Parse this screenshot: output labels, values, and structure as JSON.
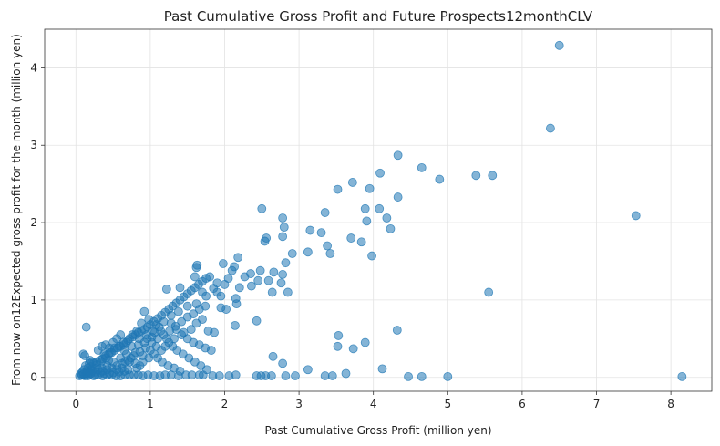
{
  "chart_data": {
    "type": "scatter",
    "title": "Past Cumulative Gross Profit and Future Prospects12monthCLV",
    "xlabel": "Past Cumulative Gross Profit (million yen)",
    "ylabel": "From now on12Expected gross profit for the month (million yen)",
    "xlim": [
      -0.42,
      8.55
    ],
    "ylim": [
      -0.18,
      4.5
    ],
    "xticks": [
      0,
      1,
      2,
      3,
      4,
      5,
      6,
      7,
      8
    ],
    "yticks": [
      0,
      1,
      2,
      3,
      4
    ],
    "grid": true,
    "point_color": "#1f77b4",
    "point_opacity": 0.55,
    "points": [
      [
        6.5,
        4.29
      ],
      [
        6.38,
        3.22
      ],
      [
        4.33,
        2.87
      ],
      [
        4.65,
        2.71
      ],
      [
        4.09,
        2.64
      ],
      [
        3.72,
        2.52
      ],
      [
        3.95,
        2.44
      ],
      [
        3.52,
        2.43
      ],
      [
        4.33,
        2.33
      ],
      [
        4.89,
        2.56
      ],
      [
        5.38,
        2.61
      ],
      [
        5.6,
        2.61
      ],
      [
        7.53,
        2.09
      ],
      [
        3.89,
        2.18
      ],
      [
        4.08,
        2.18
      ],
      [
        4.18,
        2.06
      ],
      [
        3.91,
        2.02
      ],
      [
        4.23,
        1.92
      ],
      [
        3.35,
        2.13
      ],
      [
        2.78,
        2.06
      ],
      [
        2.8,
        1.94
      ],
      [
        3.15,
        1.9
      ],
      [
        3.3,
        1.87
      ],
      [
        3.7,
        1.8
      ],
      [
        3.84,
        1.75
      ],
      [
        2.5,
        2.18
      ],
      [
        2.56,
        1.8
      ],
      [
        2.54,
        1.76
      ],
      [
        2.78,
        1.82
      ],
      [
        3.38,
        1.7
      ],
      [
        3.42,
        1.6
      ],
      [
        3.98,
        1.57
      ],
      [
        3.12,
        1.62
      ],
      [
        2.91,
        1.6
      ],
      [
        2.82,
        1.48
      ],
      [
        2.66,
        1.36
      ],
      [
        2.78,
        1.33
      ],
      [
        2.48,
        1.38
      ],
      [
        2.35,
        1.34
      ],
      [
        2.18,
        1.55
      ],
      [
        2.13,
        1.43
      ],
      [
        1.98,
        1.47
      ],
      [
        1.63,
        1.45
      ],
      [
        1.62,
        1.42
      ],
      [
        2.27,
        1.3
      ],
      [
        2.36,
        1.18
      ],
      [
        2.45,
        1.25
      ],
      [
        2.59,
        1.25
      ],
      [
        2.76,
        1.22
      ],
      [
        2.85,
        1.1
      ],
      [
        2.64,
        1.1
      ],
      [
        2.2,
        1.16
      ],
      [
        2.15,
        1.02
      ],
      [
        2.16,
        0.95
      ],
      [
        2.14,
        0.67
      ],
      [
        2.43,
        0.73
      ],
      [
        5.55,
        1.1
      ],
      [
        4.32,
        0.61
      ],
      [
        3.53,
        0.54
      ],
      [
        3.89,
        0.45
      ],
      [
        3.52,
        0.4
      ],
      [
        3.73,
        0.37
      ],
      [
        2.65,
        0.27
      ],
      [
        2.78,
        0.18
      ],
      [
        3.12,
        0.1
      ],
      [
        3.63,
        0.05
      ],
      [
        4.12,
        0.11
      ],
      [
        3.35,
        0.02
      ],
      [
        3.45,
        0.02
      ],
      [
        4.47,
        0.01
      ],
      [
        4.65,
        0.01
      ],
      [
        5.0,
        0.01
      ],
      [
        8.15,
        0.01
      ],
      [
        2.95,
        0.02
      ],
      [
        2.63,
        0.02
      ],
      [
        2.55,
        0.02
      ],
      [
        2.49,
        0.02
      ],
      [
        2.82,
        0.02
      ],
      [
        2.43,
        0.02
      ],
      [
        2.15,
        0.03
      ],
      [
        2.06,
        0.02
      ],
      [
        1.93,
        0.02
      ],
      [
        1.84,
        0.02
      ],
      [
        1.71,
        0.03
      ],
      [
        1.66,
        0.03
      ],
      [
        1.56,
        0.03
      ],
      [
        1.48,
        0.03
      ],
      [
        1.38,
        0.02
      ],
      [
        1.28,
        0.03
      ],
      [
        1.2,
        0.03
      ],
      [
        1.13,
        0.02
      ],
      [
        1.05,
        0.02
      ],
      [
        0.97,
        0.03
      ],
      [
        0.9,
        0.02
      ],
      [
        0.84,
        0.03
      ],
      [
        0.78,
        0.03
      ],
      [
        0.72,
        0.03
      ],
      [
        0.66,
        0.03
      ],
      [
        0.6,
        0.02
      ],
      [
        0.54,
        0.02
      ],
      [
        0.48,
        0.03
      ],
      [
        0.42,
        0.03
      ],
      [
        0.36,
        0.02
      ],
      [
        0.3,
        0.03
      ],
      [
        0.24,
        0.02
      ],
      [
        0.18,
        0.03
      ],
      [
        0.12,
        0.02
      ],
      [
        0.08,
        0.03
      ],
      [
        0.05,
        0.02
      ],
      [
        0.14,
        0.65
      ],
      [
        0.12,
        0.28
      ],
      [
        0.1,
        0.3
      ],
      [
        0.16,
        0.12
      ],
      [
        0.2,
        0.14
      ],
      [
        0.24,
        0.18
      ],
      [
        0.28,
        0.2
      ],
      [
        0.32,
        0.22
      ],
      [
        0.36,
        0.24
      ],
      [
        0.4,
        0.28
      ],
      [
        0.44,
        0.3
      ],
      [
        0.48,
        0.32
      ],
      [
        0.52,
        0.35
      ],
      [
        0.56,
        0.38
      ],
      [
        0.6,
        0.4
      ],
      [
        0.64,
        0.42
      ],
      [
        0.68,
        0.45
      ],
      [
        0.72,
        0.5
      ],
      [
        0.76,
        0.52
      ],
      [
        0.8,
        0.55
      ],
      [
        0.84,
        0.58
      ],
      [
        0.88,
        0.6
      ],
      [
        0.92,
        0.62
      ],
      [
        0.96,
        0.65
      ],
      [
        1.0,
        0.68
      ],
      [
        1.05,
        0.72
      ],
      [
        1.1,
        0.76
      ],
      [
        1.15,
        0.8
      ],
      [
        1.2,
        0.84
      ],
      [
        1.25,
        0.88
      ],
      [
        1.3,
        0.92
      ],
      [
        1.35,
        0.96
      ],
      [
        1.4,
        1.0
      ],
      [
        1.45,
        1.04
      ],
      [
        1.5,
        1.08
      ],
      [
        1.55,
        1.12
      ],
      [
        1.6,
        1.16
      ],
      [
        1.65,
        1.2
      ],
      [
        1.7,
        1.24
      ],
      [
        1.75,
        1.28
      ],
      [
        1.8,
        1.3
      ],
      [
        1.85,
        1.15
      ],
      [
        1.9,
        1.1
      ],
      [
        1.95,
        1.05
      ],
      [
        2.0,
        1.2
      ],
      [
        2.05,
        1.28
      ],
      [
        2.1,
        1.38
      ],
      [
        1.22,
        1.14
      ],
      [
        1.4,
        1.16
      ],
      [
        1.28,
        0.7
      ],
      [
        1.35,
        0.62
      ],
      [
        1.42,
        0.55
      ],
      [
        1.5,
        0.5
      ],
      [
        1.58,
        0.45
      ],
      [
        1.66,
        0.42
      ],
      [
        1.74,
        0.38
      ],
      [
        1.82,
        0.35
      ],
      [
        1.2,
        0.4
      ],
      [
        1.15,
        0.35
      ],
      [
        1.05,
        0.3
      ],
      [
        0.98,
        0.25
      ],
      [
        0.9,
        0.2
      ],
      [
        0.86,
        0.15
      ],
      [
        0.82,
        0.12
      ],
      [
        0.7,
        0.1
      ],
      [
        0.65,
        0.08
      ],
      [
        0.58,
        0.07
      ],
      [
        0.5,
        0.06
      ],
      [
        0.45,
        0.05
      ],
      [
        0.38,
        0.05
      ],
      [
        0.33,
        0.06
      ],
      [
        0.27,
        0.07
      ],
      [
        0.22,
        0.08
      ],
      [
        0.18,
        0.06
      ],
      [
        0.14,
        0.05
      ],
      [
        0.1,
        0.04
      ],
      [
        0.07,
        0.05
      ],
      [
        0.55,
        0.15
      ],
      [
        0.62,
        0.18
      ],
      [
        0.7,
        0.22
      ],
      [
        0.78,
        0.28
      ],
      [
        0.86,
        0.33
      ],
      [
        0.94,
        0.38
      ],
      [
        1.02,
        0.45
      ],
      [
        1.1,
        0.5
      ],
      [
        1.18,
        0.55
      ],
      [
        1.26,
        0.6
      ],
      [
        1.34,
        0.66
      ],
      [
        1.42,
        0.72
      ],
      [
        1.5,
        0.78
      ],
      [
        1.58,
        0.82
      ],
      [
        1.66,
        0.88
      ],
      [
        1.74,
        0.92
      ],
      [
        0.65,
        0.35
      ],
      [
        0.75,
        0.4
      ],
      [
        0.85,
        0.5
      ],
      [
        0.95,
        0.55
      ],
      [
        1.03,
        0.6
      ],
      [
        1.12,
        0.65
      ],
      [
        0.5,
        0.2
      ],
      [
        0.42,
        0.15
      ],
      [
        0.35,
        0.12
      ],
      [
        0.3,
        0.1
      ],
      [
        0.25,
        0.12
      ],
      [
        0.2,
        0.1
      ],
      [
        0.15,
        0.08
      ],
      [
        0.6,
        0.25
      ],
      [
        0.68,
        0.3
      ],
      [
        0.72,
        0.2
      ],
      [
        0.8,
        0.18
      ],
      [
        0.9,
        0.28
      ],
      [
        1.0,
        0.35
      ],
      [
        1.08,
        0.4
      ],
      [
        1.25,
        0.45
      ],
      [
        1.32,
        0.5
      ],
      [
        1.45,
        0.58
      ],
      [
        1.55,
        0.62
      ],
      [
        1.62,
        0.7
      ],
      [
        1.7,
        0.75
      ],
      [
        1.78,
        0.6
      ],
      [
        1.86,
        0.58
      ],
      [
        1.95,
        0.9
      ],
      [
        2.02,
        0.88
      ],
      [
        1.6,
        1.3
      ],
      [
        1.7,
        1.1
      ],
      [
        1.9,
        1.22
      ],
      [
        1.75,
        1.05
      ],
      [
        1.62,
        0.95
      ],
      [
        1.5,
        0.92
      ],
      [
        1.38,
        0.85
      ],
      [
        1.28,
        0.8
      ],
      [
        1.18,
        0.72
      ],
      [
        1.08,
        0.68
      ],
      [
        0.98,
        0.75
      ],
      [
        0.92,
        0.85
      ],
      [
        0.88,
        0.7
      ],
      [
        0.82,
        0.6
      ],
      [
        0.76,
        0.55
      ],
      [
        0.7,
        0.48
      ],
      [
        0.64,
        0.45
      ],
      [
        0.58,
        0.4
      ],
      [
        0.52,
        0.38
      ],
      [
        0.46,
        0.32
      ],
      [
        0.4,
        0.25
      ],
      [
        0.34,
        0.2
      ],
      [
        0.28,
        0.16
      ],
      [
        0.22,
        0.2
      ],
      [
        0.18,
        0.18
      ],
      [
        0.38,
        0.3
      ],
      [
        0.44,
        0.22
      ],
      [
        0.48,
        0.12
      ],
      [
        0.55,
        0.1
      ],
      [
        0.62,
        0.12
      ],
      [
        0.66,
        0.2
      ],
      [
        0.74,
        0.25
      ],
      [
        0.8,
        0.32
      ],
      [
        0.84,
        0.42
      ],
      [
        0.92,
        0.45
      ],
      [
        0.96,
        0.5
      ],
      [
        1.02,
        0.52
      ],
      [
        1.06,
        0.58
      ],
      [
        1.14,
        0.6
      ],
      [
        1.22,
        0.5
      ],
      [
        1.3,
        0.4
      ],
      [
        1.36,
        0.35
      ],
      [
        1.44,
        0.3
      ],
      [
        1.52,
        0.25
      ],
      [
        1.6,
        0.2
      ],
      [
        1.68,
        0.15
      ],
      [
        1.76,
        0.1
      ],
      [
        1.1,
        0.25
      ],
      [
        1.16,
        0.2
      ],
      [
        1.24,
        0.15
      ],
      [
        1.32,
        0.12
      ],
      [
        1.4,
        0.08
      ],
      [
        0.3,
        0.35
      ],
      [
        0.35,
        0.4
      ],
      [
        0.4,
        0.42
      ],
      [
        0.45,
        0.38
      ],
      [
        0.5,
        0.45
      ],
      [
        0.55,
        0.5
      ],
      [
        0.6,
        0.55
      ],
      [
        0.42,
        0.1
      ],
      [
        0.36,
        0.08
      ],
      [
        0.26,
        0.04
      ],
      [
        0.2,
        0.05
      ],
      [
        0.16,
        0.02
      ],
      [
        0.11,
        0.1
      ],
      [
        0.09,
        0.07
      ],
      [
        0.13,
        0.15
      ],
      [
        0.19,
        0.22
      ]
    ]
  }
}
